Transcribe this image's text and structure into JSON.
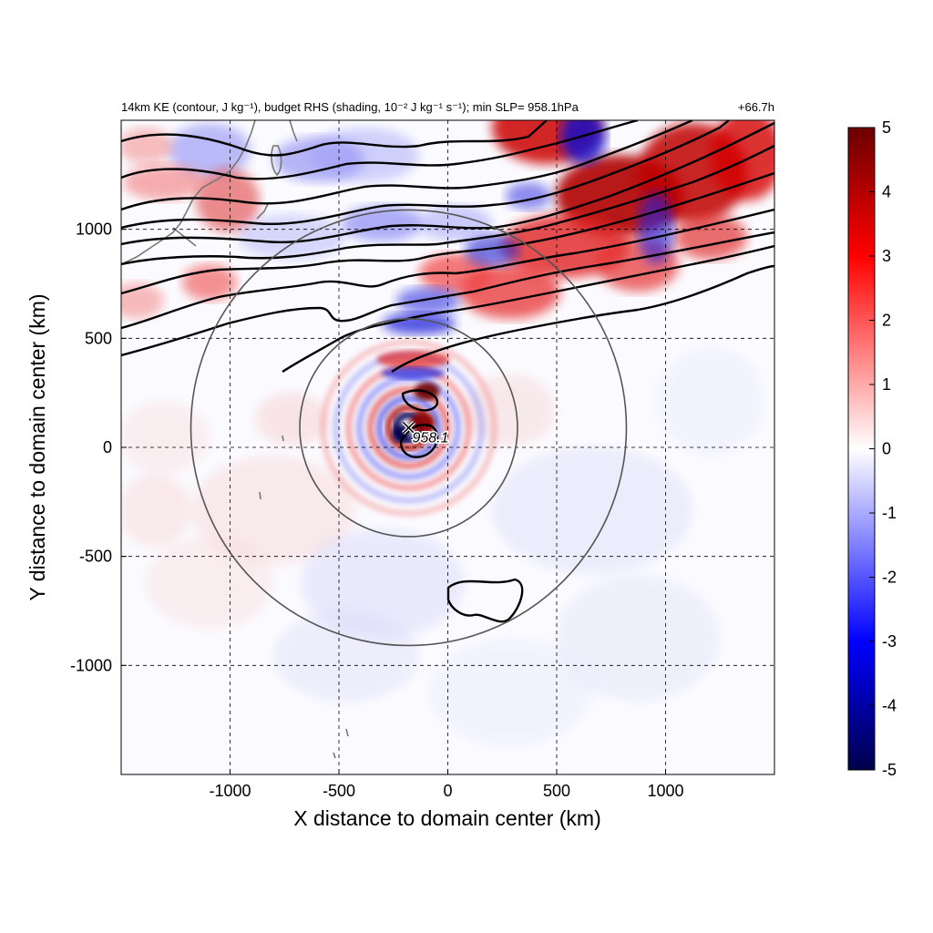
{
  "chart_data": {
    "type": "heatmap",
    "title_left": "14km KE (contour, J kg⁻¹), budget RHS (shading, 10⁻² J kg⁻¹ s⁻¹); min SLP= 958.1hPa",
    "title_right": "+66.7h",
    "xlabel": "X distance to domain center (km)",
    "ylabel": "Y distance to domain center (km)",
    "xlim": [
      -1500,
      1500
    ],
    "ylim": [
      -1500,
      1500
    ],
    "xticks": [
      "-1000",
      "-500",
      "0",
      "500",
      "1000"
    ],
    "xtick_values": [
      -1000,
      -500,
      0,
      500,
      1000
    ],
    "yticks": [
      "1000",
      "500",
      "0",
      "-500",
      "-1000"
    ],
    "ytick_values": [
      1000,
      500,
      0,
      -500,
      -1000
    ],
    "grid": true,
    "colorbar": {
      "min": -5,
      "max": 5,
      "ticks": [
        "5",
        "4",
        "3",
        "2",
        "1",
        "0",
        "-1",
        "-2",
        "-3",
        "-4",
        "-5"
      ],
      "tick_values": [
        5,
        4,
        3,
        2,
        1,
        0,
        -1,
        -2,
        -3,
        -4,
        -5
      ],
      "colors": [
        "#00004b",
        "#0000ff",
        "#ffffff",
        "#ff0000",
        "#6b0000"
      ]
    },
    "storm_center": {
      "x": -180,
      "y": 90,
      "min_slp_label": "958.1"
    },
    "rings_radius_km": [
      500,
      1000
    ]
  }
}
